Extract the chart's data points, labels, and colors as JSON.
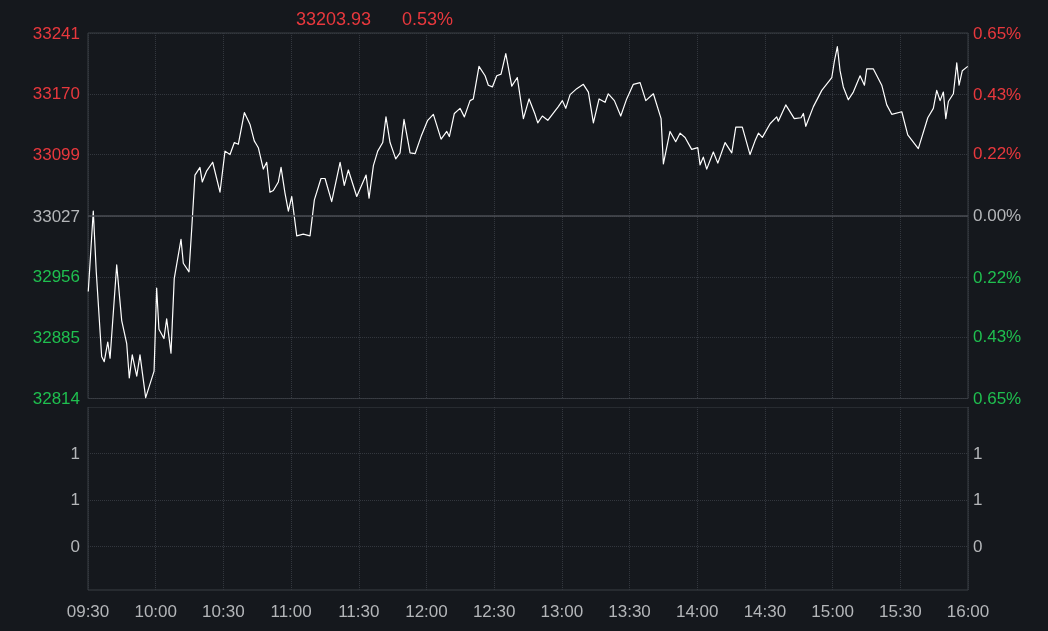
{
  "chart_data": [
    {
      "type": "line",
      "title": "33203.93",
      "subtitle": "0.53%",
      "x": [
        9.502,
        9.539,
        9.561,
        9.601,
        9.62,
        9.646,
        9.663,
        9.712,
        9.749,
        9.786,
        9.805,
        9.827,
        9.86,
        9.884,
        9.926,
        9.988,
        10.007,
        10.024,
        10.061,
        10.081,
        10.113,
        10.137,
        10.187,
        10.204,
        10.246,
        10.266,
        10.29,
        10.327,
        10.344,
        10.377,
        10.421,
        10.475,
        10.512,
        10.549,
        10.581,
        10.61,
        10.655,
        10.697,
        10.728,
        10.758,
        10.795,
        10.82,
        10.844,
        10.869,
        10.906,
        10.926,
        10.955,
        10.98,
        11.005,
        11.042,
        11.09,
        11.14,
        11.172,
        11.221,
        11.251,
        11.3,
        11.362,
        11.393,
        11.423,
        11.485,
        11.554,
        11.576,
        11.608,
        11.64,
        11.677,
        11.701,
        11.731,
        11.773,
        11.805,
        11.834,
        11.879,
        11.916,
        11.96,
        12.009,
        12.051,
        12.108,
        12.15,
        12.169,
        12.206,
        12.248,
        12.28,
        12.322,
        12.346,
        12.388,
        12.433,
        12.457,
        12.487,
        12.519,
        12.551,
        12.586,
        12.63,
        12.671,
        12.716,
        12.758,
        12.802,
        12.822,
        12.856,
        12.896,
        12.974,
        13.004,
        13.029,
        13.061,
        13.11,
        13.159,
        13.196,
        13.233,
        13.275,
        13.319,
        13.343,
        13.388,
        13.435,
        13.479,
        13.528,
        13.578,
        13.62,
        13.676,
        13.733,
        13.75,
        13.799,
        13.841,
        13.873,
        13.91,
        13.959,
        14.004,
        14.021,
        14.045,
        14.07,
        14.119,
        14.152,
        14.206,
        14.255,
        14.285,
        14.333,
        14.39,
        14.427,
        14.452,
        14.481,
        14.538,
        14.587,
        14.599,
        14.654,
        14.717,
        14.767,
        14.784,
        14.802,
        14.858,
        14.92,
        14.994,
        15.013,
        15.035,
        15.055,
        15.079,
        15.116,
        15.153,
        15.203,
        15.235,
        15.252,
        15.301,
        15.363,
        15.4,
        15.437,
        15.511,
        15.555,
        15.633,
        15.703,
        15.744,
        15.769,
        15.794,
        15.818,
        15.836,
        15.855,
        15.892,
        15.917,
        15.934,
        15.958,
        15.998
      ],
      "series": [
        {
          "color": "#ffffff",
          "values": [
            32939,
            33033,
            32962,
            32863,
            32857,
            32880,
            32861,
            32970,
            32905,
            32878,
            32838,
            32865,
            32840,
            32865,
            32815,
            32846,
            32943,
            32895,
            32884,
            32907,
            32867,
            32954,
            33000,
            32972,
            32962,
            33012,
            33075,
            33084,
            33067,
            33080,
            33090,
            33055,
            33103,
            33099,
            33113,
            33111,
            33148,
            33134,
            33115,
            33107,
            33082,
            33090,
            33055,
            33057,
            33067,
            33084,
            33054,
            33033,
            33050,
            33004,
            33006,
            33004,
            33046,
            33071,
            33071,
            33044,
            33090,
            33063,
            33081,
            33050,
            33075,
            33048,
            33086,
            33103,
            33113,
            33143,
            33113,
            33094,
            33101,
            33140,
            33101,
            33100,
            33120,
            33139,
            33146,
            33117,
            33126,
            33120,
            33147,
            33153,
            33143,
            33162,
            33164,
            33202,
            33191,
            33180,
            33178,
            33191,
            33193,
            33217,
            33179,
            33189,
            33141,
            33164,
            33146,
            33136,
            33144,
            33139,
            33155,
            33162,
            33153,
            33169,
            33176,
            33181,
            33172,
            33136,
            33164,
            33160,
            33170,
            33162,
            33144,
            33164,
            33181,
            33183,
            33162,
            33170,
            33141,
            33088,
            33126,
            33114,
            33124,
            33119,
            33105,
            33107,
            33087,
            33096,
            33082,
            33102,
            33089,
            33113,
            33101,
            33131,
            33131,
            33099,
            33115,
            33124,
            33119,
            33135,
            33143,
            33138,
            33157,
            33141,
            33142,
            33147,
            33132,
            33155,
            33174,
            33189,
            33208,
            33225,
            33197,
            33178,
            33163,
            33172,
            33191,
            33180,
            33199,
            33199,
            33180,
            33157,
            33146,
            33149,
            33122,
            33106,
            33142,
            33153,
            33174,
            33162,
            33172,
            33141,
            33161,
            33170,
            33206,
            33180,
            33197,
            33202
          ]
        }
      ],
      "xlim": [
        9.5,
        16
      ],
      "xticks": [
        9.5,
        10,
        10.5,
        11,
        11.5,
        12,
        12.5,
        13,
        13.5,
        14,
        14.5,
        15,
        15.5,
        16
      ],
      "ylim": [
        32814,
        33241
      ],
      "yticks": [
        32814,
        32885,
        32956,
        33027,
        33099,
        33170,
        33241
      ],
      "y2lim": [
        -0.65,
        0.65
      ],
      "y2ticks": [
        {
          "value": -0.65,
          "label": "0.65%"
        },
        {
          "value": -0.43,
          "label": "0.43%"
        },
        {
          "value": -0.22,
          "label": "0.22%"
        },
        {
          "value": 0,
          "label": "0.00%"
        },
        {
          "value": 0.22,
          "label": "0.22%"
        },
        {
          "value": 0.43,
          "label": "0.43%"
        },
        {
          "value": 0.65,
          "label": "0.65%"
        }
      ],
      "ref_lines": [
        {
          "axis": "y",
          "value": 33027,
          "color": "#4a4d53"
        }
      ],
      "grid": true,
      "marker": "none",
      "line_style": "solid",
      "tick_labels": "y"
    },
    {
      "type": "bar",
      "xlim": [
        9.5,
        16
      ],
      "xticks": [
        {
          "value": 9.5,
          "label": "09:30"
        },
        {
          "value": 10,
          "label": "10:00"
        },
        {
          "value": 10.5,
          "label": "10:30"
        },
        {
          "value": 11,
          "label": "11:00"
        },
        {
          "value": 11.5,
          "label": "11:30"
        },
        {
          "value": 12,
          "label": "12:00"
        },
        {
          "value": 12.5,
          "label": "12:30"
        },
        {
          "value": 13,
          "label": "13:00"
        },
        {
          "value": 13.5,
          "label": "13:30"
        },
        {
          "value": 14,
          "label": "14:00"
        },
        {
          "value": 14.5,
          "label": "14:30"
        },
        {
          "value": 15,
          "label": "15:00"
        },
        {
          "value": 15.5,
          "label": "15:30"
        },
        {
          "value": 16,
          "label": "16:00"
        }
      ],
      "ylim": [
        -0.47,
        1.5
      ],
      "yticks": [
        {
          "value": 0,
          "label": "0"
        },
        {
          "value": 0.5,
          "label": "1"
        },
        {
          "value": 1,
          "label": "1"
        }
      ],
      "y2lim": [
        -0.47,
        1.5
      ],
      "y2ticks": [
        {
          "value": 0,
          "label": "0"
        },
        {
          "value": 0.5,
          "label": "1"
        },
        {
          "value": 1,
          "label": "1"
        }
      ],
      "grid": true
    }
  ]
}
